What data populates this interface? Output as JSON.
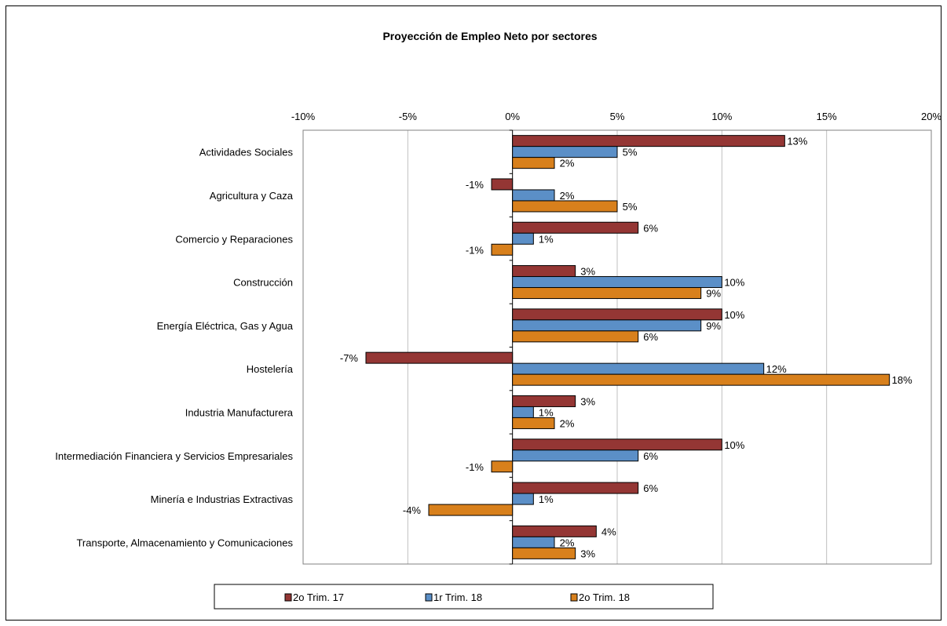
{
  "chart_data": {
    "type": "bar",
    "orientation": "horizontal",
    "title": "Proyección de Empleo Neto por sectores",
    "xlabel": "",
    "ylabel": "",
    "xlim": [
      -10,
      20
    ],
    "x_ticks": [
      "-10%",
      "-5%",
      "0%",
      "5%",
      "10%",
      "15%",
      "20%"
    ],
    "x_tick_values": [
      -10,
      -5,
      0,
      5,
      10,
      15,
      20
    ],
    "grid": "vertical",
    "legend_position": "bottom",
    "categories": [
      "Actividades Sociales",
      "Agricultura y Caza",
      "Comercio y Reparaciones",
      "Construcción",
      "Energía Eléctrica, Gas y  Agua",
      "Hostelería",
      "Industria Manufacturera",
      "Intermediación Financiera y Servicios Empresariales",
      "Minería e Industrias Extractivas",
      "Transporte, Almacenamiento y Comunicaciones"
    ],
    "series": [
      {
        "name": "2o Trim. 17",
        "color": "#943634",
        "values": [
          13,
          -1,
          6,
          3,
          10,
          -7,
          3,
          10,
          6,
          4
        ],
        "labels": [
          "13%",
          "-1%",
          "6%",
          "3%",
          "10%",
          "-7%",
          "3%",
          "10%",
          "6%",
          "4%"
        ]
      },
      {
        "name": "1r Trim. 18",
        "color": "#5b8fc7",
        "values": [
          5,
          2,
          1,
          10,
          9,
          12,
          1,
          6,
          1,
          2
        ],
        "labels": [
          "5%",
          "2%",
          "1%",
          "10%",
          "9%",
          "12%",
          "1%",
          "6%",
          "1%",
          "2%"
        ]
      },
      {
        "name": "2o Trim. 18",
        "color": "#d8801c",
        "values": [
          2,
          5,
          -1,
          9,
          6,
          18,
          2,
          -1,
          -4,
          3
        ],
        "labels": [
          "2%",
          "5%",
          "-1%",
          "9%",
          "6%",
          "18%",
          "2%",
          "-1%",
          "-4%",
          "3%"
        ]
      }
    ]
  }
}
